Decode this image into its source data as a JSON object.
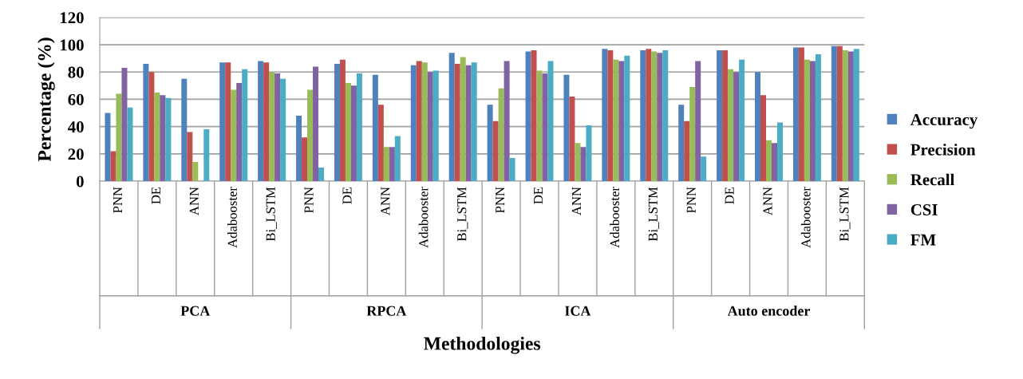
{
  "chart_data": {
    "type": "bar",
    "xlabel": "Methodologies",
    "ylabel": "Percentage (%)",
    "categories": [
      "PNN",
      "DE",
      "ANN",
      "Adabooster",
      "Bi_LSTM",
      "PNN",
      "DE",
      "ANN",
      "Adabooster",
      "Bi_LSTM",
      "PNN",
      "DE",
      "ANN",
      "Adabooster",
      "Bi_LSTM",
      "PNN",
      "DE",
      "ANN",
      "Adabooster",
      "Bi_LSTM"
    ],
    "annotations": [
      "PCA",
      "RPCA",
      "ICA",
      "Auto encoder"
    ],
    "series": [
      {
        "name": "Accuracy",
        "color": "#4f81bd",
        "values": [
          50,
          86,
          75,
          87,
          88,
          48,
          86,
          78,
          85,
          94,
          56,
          95,
          78,
          97,
          96,
          56,
          96,
          80,
          98,
          99
        ]
      },
      {
        "name": "Precision",
        "color": "#c0504d",
        "values": [
          22,
          80,
          36,
          87,
          87,
          32,
          89,
          56,
          88,
          86,
          44,
          96,
          62,
          96,
          97,
          44,
          96,
          63,
          98,
          99
        ]
      },
      {
        "name": "Recall",
        "color": "#9bbb59",
        "values": [
          64,
          65,
          14,
          67,
          80,
          67,
          72,
          25,
          87,
          91,
          68,
          81,
          28,
          89,
          95,
          69,
          82,
          30,
          89,
          96
        ]
      },
      {
        "name": "CSI",
        "color": "#8064a2",
        "values": [
          83,
          63,
          null,
          72,
          79,
          84,
          70,
          25,
          80,
          85,
          88,
          79,
          25,
          88,
          94,
          88,
          80,
          28,
          88,
          95
        ]
      },
      {
        "name": "FM",
        "color": "#4bacc6",
        "values": [
          54,
          61,
          38,
          82,
          75,
          10,
          79,
          33,
          81,
          87,
          17,
          88,
          41,
          92,
          96,
          18,
          89,
          43,
          93,
          97
        ]
      }
    ],
    "ylim": [
      0,
      120
    ],
    "yticks": [
      0,
      20,
      40,
      60,
      80,
      100,
      120
    ],
    "grid": "y",
    "legend": "right"
  }
}
